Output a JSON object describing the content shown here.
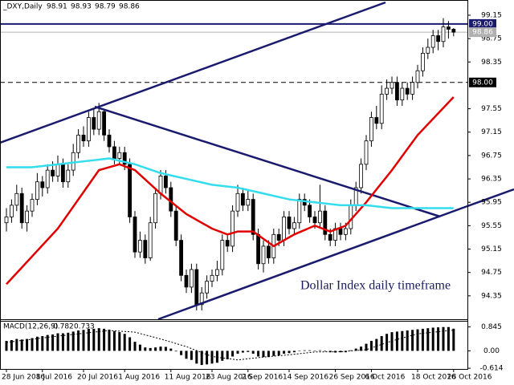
{
  "chart_data": {
    "type": "candlestick",
    "header": {
      "symbol": "_DXY,Daily",
      "values": [
        98.91,
        98.93,
        98.79,
        98.86
      ]
    },
    "categories": [
      "28 Jun 2016",
      null,
      null,
      null,
      null,
      null,
      null,
      "8 Jul 2016",
      null,
      null,
      null,
      null,
      null,
      null,
      null,
      "20 Jul 2016",
      null,
      null,
      null,
      null,
      null,
      null,
      null,
      "1 Aug 2016",
      null,
      null,
      null,
      null,
      null,
      null,
      null,
      null,
      "11 Aug 2016",
      null,
      null,
      null,
      null,
      null,
      null,
      null,
      "23 Aug 2016",
      null,
      null,
      null,
      null,
      null,
      null,
      "2 Sep 2016",
      null,
      null,
      null,
      null,
      null,
      null,
      null,
      "14 Sep 2016",
      null,
      null,
      null,
      null,
      null,
      null,
      null,
      null,
      "26 Sep 2016",
      null,
      null,
      null,
      null,
      null,
      null,
      "6 Oct 2016",
      null,
      null,
      null,
      null,
      null,
      null,
      null,
      null,
      "18 Oct 2016",
      null,
      null,
      null,
      null,
      null,
      null,
      "28 Oct 2016"
    ],
    "open": [
      95.6,
      95.7,
      95.9,
      96.1,
      95.6,
      95.8,
      96.0,
      96.3,
      96.2,
      96.5,
      96.4,
      96.6,
      96.3,
      96.5,
      96.8,
      97.1,
      97.0,
      97.4,
      97.2,
      97.5,
      97.1,
      96.9,
      96.7,
      96.8,
      96.6,
      95.7,
      95.1,
      95.3,
      95.0,
      95.6,
      96.1,
      96.4,
      96.2,
      95.8,
      95.3,
      94.7,
      94.5,
      94.8,
      94.2,
      94.4,
      94.6,
      94.7,
      94.8,
      95.3,
      95.2,
      95.8,
      96.1,
      95.9,
      96.0,
      95.4,
      94.9,
      95.2,
      95.0,
      95.4,
      95.3,
      95.7,
      95.5,
      95.6,
      96.0,
      95.9,
      95.7,
      95.6,
      95.8,
      95.4,
      95.3,
      95.5,
      95.4,
      95.5,
      95.9,
      96.2,
      96.6,
      97.0,
      97.4,
      97.3,
      97.8,
      97.9,
      98.0,
      97.7,
      97.9,
      97.8,
      98.0,
      98.2,
      98.5,
      98.6,
      98.8,
      98.7,
      98.95,
      98.91
    ],
    "high": [
      95.85,
      96.0,
      96.25,
      96.2,
      95.9,
      96.1,
      96.45,
      96.4,
      96.6,
      96.65,
      96.75,
      96.7,
      96.6,
      96.95,
      97.2,
      97.25,
      97.5,
      97.55,
      97.65,
      97.55,
      97.2,
      97.0,
      96.9,
      96.9,
      96.7,
      95.8,
      95.45,
      95.4,
      95.7,
      96.2,
      96.5,
      96.5,
      96.3,
      95.9,
      95.4,
      94.8,
      94.9,
      94.9,
      94.5,
      94.7,
      94.8,
      94.95,
      95.4,
      95.4,
      95.9,
      96.25,
      96.2,
      96.15,
      96.1,
      95.5,
      95.3,
      95.3,
      95.5,
      95.5,
      95.8,
      95.8,
      95.7,
      96.1,
      96.1,
      96.0,
      95.8,
      96.25,
      95.9,
      95.5,
      95.6,
      95.6,
      95.6,
      96.0,
      96.3,
      96.7,
      97.1,
      97.5,
      97.6,
      97.95,
      98.05,
      98.1,
      98.1,
      98.0,
      98.0,
      98.1,
      98.3,
      98.6,
      98.75,
      98.9,
      98.9,
      99.1,
      99.05,
      98.93
    ],
    "low": [
      95.45,
      95.6,
      95.8,
      95.5,
      95.45,
      95.7,
      95.9,
      96.05,
      96.1,
      96.3,
      96.3,
      96.2,
      96.2,
      96.4,
      96.7,
      96.9,
      96.9,
      97.1,
      97.1,
      97.0,
      96.8,
      96.6,
      96.6,
      96.5,
      95.6,
      95.0,
      95.0,
      94.9,
      94.95,
      95.5,
      96.0,
      96.1,
      95.7,
      95.2,
      94.6,
      94.4,
      94.4,
      94.1,
      94.1,
      94.3,
      94.5,
      94.6,
      94.7,
      95.1,
      95.1,
      95.7,
      95.8,
      95.8,
      95.3,
      94.8,
      94.75,
      94.9,
      94.9,
      95.2,
      95.2,
      95.4,
      95.4,
      95.5,
      95.8,
      95.6,
      95.5,
      95.5,
      95.3,
      95.2,
      95.2,
      95.3,
      95.3,
      95.4,
      95.8,
      96.1,
      96.5,
      96.9,
      97.2,
      97.2,
      97.7,
      97.8,
      97.6,
      97.6,
      97.7,
      97.7,
      97.9,
      98.1,
      98.4,
      98.5,
      98.55,
      98.6,
      98.75,
      98.79
    ],
    "close": [
      95.7,
      95.9,
      96.1,
      95.6,
      95.8,
      96.0,
      96.3,
      96.2,
      96.5,
      96.4,
      96.6,
      96.3,
      96.5,
      96.8,
      97.1,
      97.0,
      97.4,
      97.2,
      97.5,
      97.1,
      96.9,
      96.7,
      96.8,
      96.6,
      95.7,
      95.1,
      95.3,
      95.0,
      95.6,
      96.1,
      96.4,
      96.2,
      95.8,
      95.3,
      94.7,
      94.5,
      94.8,
      94.2,
      94.4,
      94.6,
      94.7,
      94.8,
      95.3,
      95.2,
      95.8,
      96.1,
      95.9,
      96.0,
      95.4,
      94.9,
      95.2,
      95.0,
      95.4,
      95.3,
      95.7,
      95.5,
      95.6,
      96.0,
      95.9,
      95.7,
      95.6,
      95.8,
      95.4,
      95.3,
      95.5,
      95.4,
      95.5,
      95.9,
      96.2,
      96.6,
      97.0,
      97.4,
      97.3,
      97.8,
      97.9,
      98.0,
      97.7,
      97.9,
      97.8,
      98.0,
      98.2,
      98.5,
      98.6,
      98.8,
      98.7,
      98.95,
      98.91,
      98.86
    ],
    "up_color": "#ffffff",
    "down_color": "#000000",
    "ylim": [
      93.95,
      99.41
    ],
    "yticks": [
      99.15,
      98.75,
      98.35,
      97.55,
      97.15,
      96.75,
      96.35,
      95.95,
      95.55,
      95.15,
      94.75,
      94.35
    ],
    "price_lines": [
      {
        "value": 99,
        "label": "99.00",
        "color": "#1a1a6e",
        "dashed": false
      },
      {
        "value": 98.86,
        "label": "98.86",
        "color": "#b0b0b0",
        "dashed": false
      },
      {
        "value": 98,
        "label": "98.00",
        "color": "#000000",
        "dashed": true
      }
    ],
    "overlays": [
      {
        "color": "#e00000",
        "x": [
          0,
          10,
          18,
          22,
          25,
          30,
          35,
          40,
          43,
          45,
          48,
          52,
          56,
          60,
          63,
          66,
          70,
          75,
          80,
          87
        ],
        "values": [
          94.55,
          95.5,
          96.5,
          96.6,
          96.5,
          96.1,
          95.75,
          95.5,
          95.4,
          95.45,
          95.45,
          95.2,
          95.4,
          95.55,
          95.45,
          95.55,
          95.95,
          96.5,
          97.1,
          97.75
        ]
      },
      {
        "color": "#33ddee",
        "x": [
          0,
          5,
          10,
          15,
          20,
          25,
          30,
          35,
          40,
          45,
          50,
          55,
          60,
          65,
          70,
          75,
          80,
          87
        ],
        "values": [
          96.55,
          96.55,
          96.6,
          96.65,
          96.7,
          96.6,
          96.45,
          96.35,
          96.25,
          96.2,
          96.1,
          96.0,
          95.95,
          95.9,
          95.9,
          95.85,
          95.85,
          95.85
        ]
      }
    ],
    "annotation": "Dollar Index daily timeframe",
    "macd": {
      "label": "MACD(12,26,9)",
      "readout": [
        0.782,
        0.733
      ],
      "color": "#000000",
      "values": [
        0.35,
        0.38,
        0.42,
        0.4,
        0.42,
        0.45,
        0.5,
        0.52,
        0.56,
        0.58,
        0.62,
        0.62,
        0.64,
        0.68,
        0.72,
        0.74,
        0.78,
        0.78,
        0.8,
        0.78,
        0.75,
        0.7,
        0.66,
        0.6,
        0.48,
        0.32,
        0.22,
        0.12,
        0.1,
        0.12,
        0.15,
        0.14,
        0.08,
        -0.02,
        -0.15,
        -0.28,
        -0.32,
        -0.45,
        -0.5,
        -0.48,
        -0.45,
        -0.42,
        -0.35,
        -0.3,
        -0.2,
        -0.1,
        -0.06,
        -0.04,
        -0.1,
        -0.2,
        -0.22,
        -0.22,
        -0.18,
        -0.16,
        -0.1,
        -0.08,
        -0.05,
        0.0,
        0.02,
        0.02,
        0.0,
        0.02,
        -0.02,
        -0.05,
        -0.06,
        -0.05,
        -0.05,
        0.02,
        0.08,
        0.15,
        0.25,
        0.35,
        0.42,
        0.52,
        0.6,
        0.66,
        0.68,
        0.7,
        0.72,
        0.74,
        0.76,
        0.78,
        0.8,
        0.82,
        0.83,
        0.84,
        0.84,
        0.782
      ],
      "signal": {
        "x": [
          0,
          10,
          20,
          25,
          30,
          35,
          40,
          45,
          50,
          55,
          60,
          65,
          70,
          75,
          80,
          87
        ],
        "values": [
          0.3,
          0.52,
          0.72,
          0.66,
          0.42,
          0.15,
          -0.2,
          -0.32,
          -0.22,
          -0.14,
          -0.04,
          -0.03,
          0.04,
          0.35,
          0.6,
          0.733
        ]
      },
      "ylim": [
        -0.64,
        1.06
      ],
      "yticks": [
        0.845,
        {
          "value": 0,
          "label": "0.00"
        },
        -0.614
      ]
    }
  }
}
